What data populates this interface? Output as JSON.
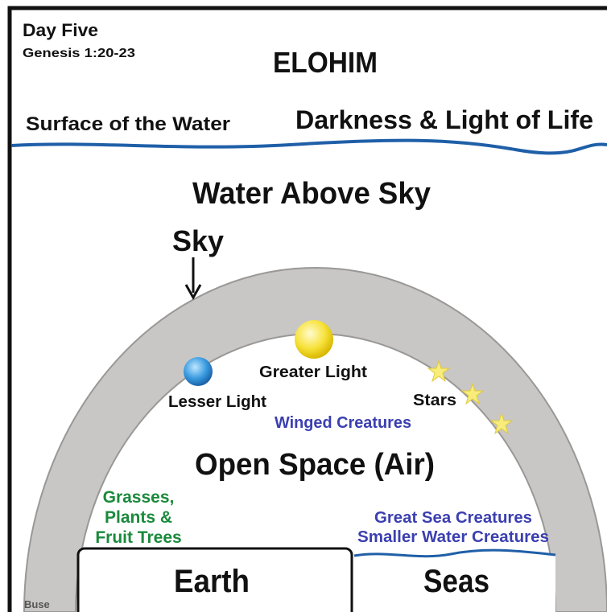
{
  "header": {
    "day": "Day Five",
    "reference": "Genesis 1:20-23",
    "title": "ELOHIM"
  },
  "top_labels": {
    "left": "Surface of the Water",
    "right": "Darkness & Light of Life"
  },
  "sky_labels": {
    "water_above": "Water Above Sky",
    "sky": "Sky"
  },
  "lights": {
    "greater": "Greater Light",
    "lesser": "Lesser Light",
    "stars": "Stars"
  },
  "creatures": {
    "winged": "Winged Creatures",
    "great_sea": "Great Sea Creatures",
    "smaller_water": "Smaller Water Creatures"
  },
  "open_space": "Open Space (Air)",
  "plants": [
    "Grasses,",
    "Plants &",
    "Fruit Trees"
  ],
  "ground": {
    "earth": "Earth",
    "seas": "Seas"
  },
  "signature": "Buse"
}
